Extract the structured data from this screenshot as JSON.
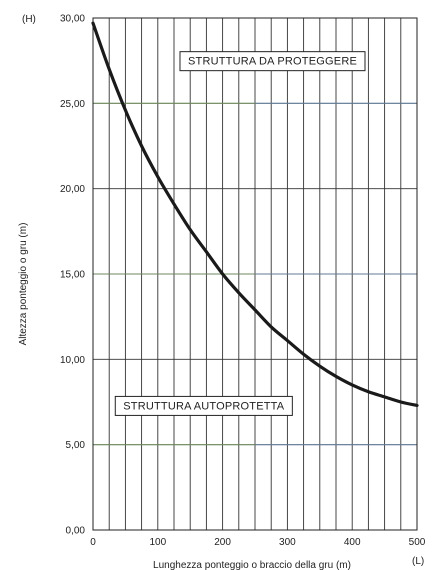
{
  "chart_data": {
    "type": "line",
    "xlabel": "Lunghezza ponteggio o braccio della gru (m)",
    "ylabel": "Altezza ponteggio o gru (m)",
    "x_axis_symbol": "(L)",
    "y_axis_symbol": "(H)",
    "xlim": [
      0,
      500
    ],
    "ylim": [
      0,
      30
    ],
    "x_ticks": [
      0,
      100,
      200,
      300,
      400,
      500
    ],
    "x_tick_labels": [
      "0",
      "100",
      "200",
      "300",
      "400",
      "500"
    ],
    "y_ticks": [
      0,
      5,
      10,
      15,
      20,
      25,
      30
    ],
    "y_tick_labels": [
      "0,00",
      "5,00",
      "10,00",
      "15,00",
      "20,00",
      "25,00",
      "30,00"
    ],
    "grid": true,
    "series": [
      {
        "x": [
          0,
          25,
          50,
          75,
          100,
          125,
          150,
          175,
          200,
          225,
          250,
          275,
          300,
          325,
          350,
          375,
          400,
          425,
          450,
          475,
          500
        ],
        "y": [
          29.7,
          27.0,
          24.6,
          22.5,
          20.7,
          19.1,
          17.6,
          16.3,
          15.0,
          13.9,
          12.9,
          11.9,
          11.1,
          10.3,
          9.6,
          9.0,
          8.5,
          8.1,
          7.8,
          7.5,
          7.3
        ]
      }
    ],
    "annotations": [
      {
        "text": "STRUTTURA DA PROTEGGERE",
        "x": 277,
        "y": 27.5
      },
      {
        "text": "STRUTTURA AUTOPROTETTA",
        "x": 171,
        "y": 7.3
      }
    ],
    "colors": {
      "curve": "#1a1a1a",
      "grid": "#333333",
      "grid_colored": [
        "#7fa36a",
        "#6f8fb8"
      ]
    }
  }
}
